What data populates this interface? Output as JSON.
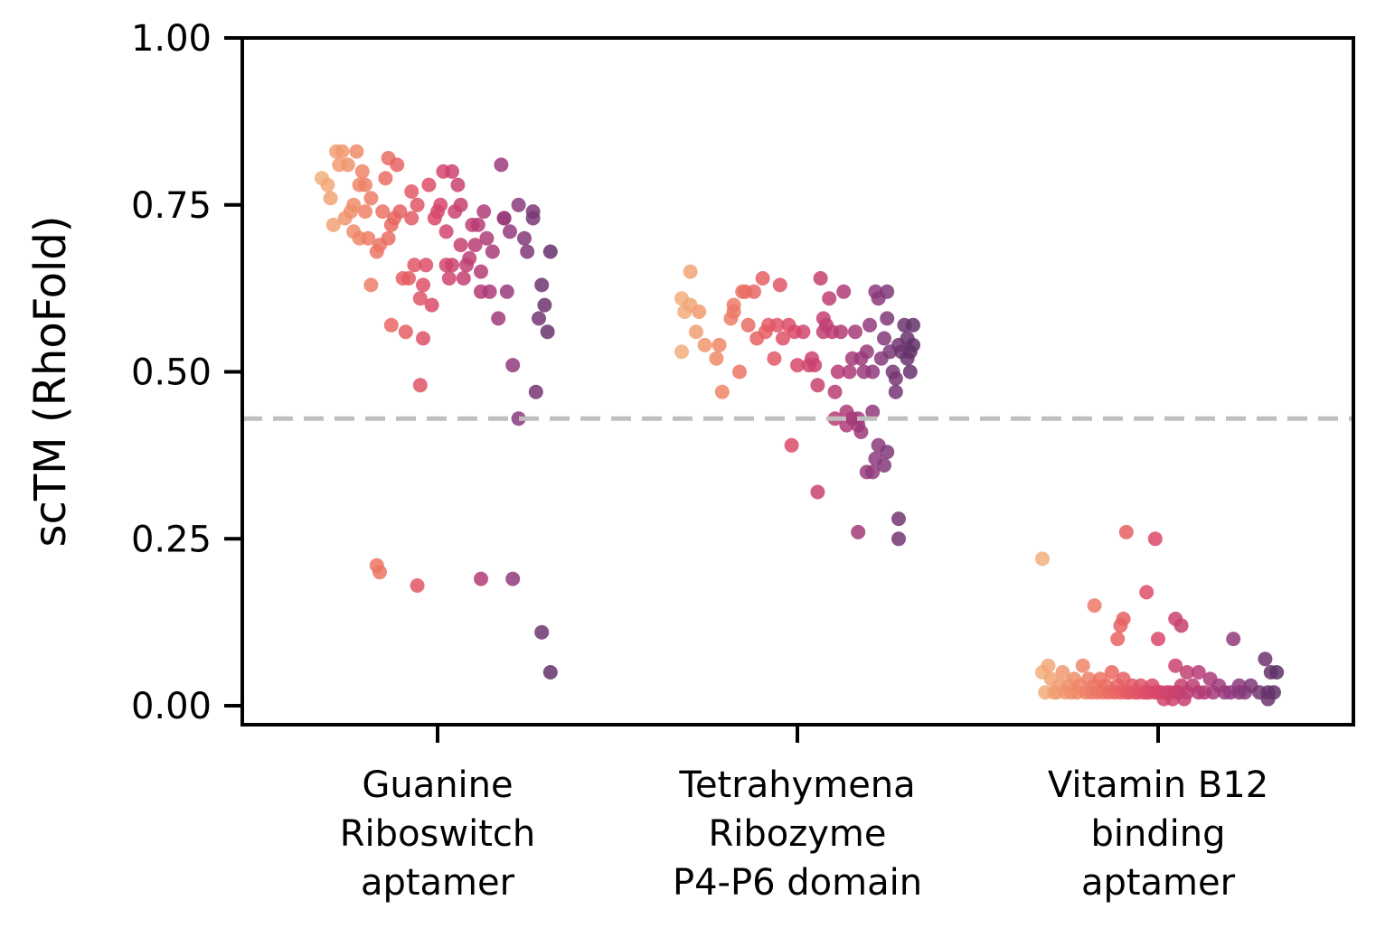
{
  "chart_data": {
    "type": "scatter",
    "title": "",
    "xlabel": "",
    "ylabel": "scTM (RhoFold)",
    "ylim": [
      -0.03,
      1.0
    ],
    "yticks": [
      "0.00",
      "0.25",
      "0.50",
      "0.75",
      "1.00"
    ],
    "grid": false,
    "legend": "none",
    "reference_line": {
      "y": 0.43,
      "style": "dashed",
      "color": "#bfbfbf"
    },
    "colormap": [
      "#f3b47f",
      "#ef8a69",
      "#e86462",
      "#d9476a",
      "#b83c76",
      "#8a3a7d",
      "#5b3166"
    ],
    "categories": [
      {
        "lines": [
          "Guanine",
          "Riboswitch",
          "aptamer"
        ]
      },
      {
        "lines": [
          "Tetrahymena",
          "Ribozyme",
          "P4-P6 domain"
        ]
      },
      {
        "lines": [
          "Vitamin B12",
          "binding",
          "aptamer"
        ]
      }
    ],
    "series": [
      {
        "category": 0,
        "points": [
          [
            -0.4,
            0.79
          ],
          [
            -0.38,
            0.78
          ],
          [
            -0.37,
            0.76
          ],
          [
            -0.36,
            0.72
          ],
          [
            -0.35,
            0.83
          ],
          [
            -0.34,
            0.81
          ],
          [
            -0.33,
            0.83
          ],
          [
            -0.32,
            0.73
          ],
          [
            -0.31,
            0.81
          ],
          [
            -0.3,
            0.74
          ],
          [
            -0.29,
            0.71
          ],
          [
            -0.29,
            0.75
          ],
          [
            -0.28,
            0.83
          ],
          [
            -0.27,
            0.7
          ],
          [
            -0.27,
            0.78
          ],
          [
            -0.26,
            0.8
          ],
          [
            -0.25,
            0.74
          ],
          [
            -0.25,
            0.78
          ],
          [
            -0.24,
            0.7
          ],
          [
            -0.23,
            0.63
          ],
          [
            -0.23,
            0.76
          ],
          [
            -0.21,
            0.68
          ],
          [
            -0.2,
            0.69
          ],
          [
            -0.19,
            0.74
          ],
          [
            -0.18,
            0.79
          ],
          [
            -0.17,
            0.7
          ],
          [
            -0.17,
            0.82
          ],
          [
            -0.16,
            0.72
          ],
          [
            -0.16,
            0.57
          ],
          [
            -0.15,
            0.73
          ],
          [
            -0.14,
            0.81
          ],
          [
            -0.13,
            0.74
          ],
          [
            -0.12,
            0.64
          ],
          [
            -0.11,
            0.56
          ],
          [
            -0.1,
            0.64
          ],
          [
            -0.09,
            0.77
          ],
          [
            -0.09,
            0.73
          ],
          [
            -0.08,
            0.66
          ],
          [
            -0.07,
            0.75
          ],
          [
            -0.06,
            0.61
          ],
          [
            -0.06,
            0.48
          ],
          [
            -0.05,
            0.63
          ],
          [
            -0.05,
            0.55
          ],
          [
            -0.04,
            0.66
          ],
          [
            -0.03,
            0.78
          ],
          [
            -0.02,
            0.6
          ],
          [
            -0.01,
            0.73
          ],
          [
            0.0,
            0.74
          ],
          [
            0.01,
            0.75
          ],
          [
            0.02,
            0.8
          ],
          [
            0.03,
            0.71
          ],
          [
            0.03,
            0.66
          ],
          [
            0.04,
            0.64
          ],
          [
            0.05,
            0.8
          ],
          [
            0.05,
            0.66
          ],
          [
            0.06,
            0.74
          ],
          [
            0.07,
            0.78
          ],
          [
            0.08,
            0.69
          ],
          [
            0.08,
            0.75
          ],
          [
            0.09,
            0.64
          ],
          [
            0.1,
            0.66
          ],
          [
            0.11,
            0.67
          ],
          [
            0.12,
            0.72
          ],
          [
            0.13,
            0.69
          ],
          [
            0.14,
            0.72
          ],
          [
            0.15,
            0.62
          ],
          [
            0.15,
            0.65
          ],
          [
            0.16,
            0.74
          ],
          [
            0.17,
            0.7
          ],
          [
            0.18,
            0.62
          ],
          [
            0.19,
            0.68
          ],
          [
            0.21,
            0.58
          ],
          [
            0.22,
            0.81
          ],
          [
            0.23,
            0.73
          ],
          [
            0.23,
            0.73
          ],
          [
            0.24,
            0.62
          ],
          [
            0.25,
            0.71
          ],
          [
            0.26,
            0.51
          ],
          [
            0.28,
            0.75
          ],
          [
            0.28,
            0.43
          ],
          [
            0.3,
            0.7
          ],
          [
            0.31,
            0.68
          ],
          [
            0.33,
            0.74
          ],
          [
            0.33,
            0.73
          ],
          [
            0.34,
            0.47
          ],
          [
            0.35,
            0.58
          ],
          [
            0.36,
            0.63
          ],
          [
            0.37,
            0.6
          ],
          [
            0.38,
            0.56
          ],
          [
            0.39,
            0.68
          ],
          [
            -0.21,
            0.21
          ],
          [
            -0.2,
            0.2
          ],
          [
            -0.07,
            0.18
          ],
          [
            0.15,
            0.19
          ],
          [
            0.26,
            0.19
          ],
          [
            0.36,
            0.11
          ],
          [
            0.39,
            0.05
          ]
        ]
      },
      {
        "category": 1,
        "points": [
          [
            -0.4,
            0.61
          ],
          [
            -0.4,
            0.53
          ],
          [
            -0.39,
            0.59
          ],
          [
            -0.37,
            0.6
          ],
          [
            -0.37,
            0.65
          ],
          [
            -0.35,
            0.56
          ],
          [
            -0.34,
            0.59
          ],
          [
            -0.32,
            0.54
          ],
          [
            -0.28,
            0.52
          ],
          [
            -0.27,
            0.54
          ],
          [
            -0.26,
            0.47
          ],
          [
            -0.23,
            0.58
          ],
          [
            -0.22,
            0.6
          ],
          [
            -0.22,
            0.59
          ],
          [
            -0.2,
            0.5
          ],
          [
            -0.19,
            0.62
          ],
          [
            -0.18,
            0.62
          ],
          [
            -0.17,
            0.57
          ],
          [
            -0.15,
            0.62
          ],
          [
            -0.14,
            0.55
          ],
          [
            -0.12,
            0.64
          ],
          [
            -0.11,
            0.56
          ],
          [
            -0.1,
            0.57
          ],
          [
            -0.08,
            0.52
          ],
          [
            -0.07,
            0.57
          ],
          [
            -0.06,
            0.63
          ],
          [
            -0.05,
            0.55
          ],
          [
            -0.03,
            0.57
          ],
          [
            -0.01,
            0.56
          ],
          [
            0.0,
            0.51
          ],
          [
            0.02,
            0.56
          ],
          [
            0.04,
            0.51
          ],
          [
            0.05,
            0.52
          ],
          [
            0.06,
            0.51
          ],
          [
            0.07,
            0.48
          ],
          [
            0.08,
            0.64
          ],
          [
            0.09,
            0.58
          ],
          [
            0.09,
            0.56
          ],
          [
            0.1,
            0.57
          ],
          [
            0.11,
            0.61
          ],
          [
            0.12,
            0.56
          ],
          [
            0.13,
            0.47
          ],
          [
            0.14,
            0.5
          ],
          [
            0.15,
            0.56
          ],
          [
            0.16,
            0.62
          ],
          [
            0.17,
            0.44
          ],
          [
            0.18,
            0.5
          ],
          [
            0.19,
            0.52
          ],
          [
            0.2,
            0.56
          ],
          [
            0.21,
            0.43
          ],
          [
            0.22,
            0.52
          ],
          [
            0.23,
            0.5
          ],
          [
            0.24,
            0.53
          ],
          [
            0.25,
            0.57
          ],
          [
            0.26,
            0.5
          ],
          [
            0.26,
            0.44
          ],
          [
            0.27,
            0.62
          ],
          [
            0.28,
            0.61
          ],
          [
            0.29,
            0.52
          ],
          [
            0.3,
            0.55
          ],
          [
            0.31,
            0.58
          ],
          [
            0.31,
            0.62
          ],
          [
            0.32,
            0.53
          ],
          [
            0.33,
            0.5
          ],
          [
            0.34,
            0.49
          ],
          [
            0.34,
            0.47
          ],
          [
            0.35,
            0.54
          ],
          [
            0.36,
            0.53
          ],
          [
            0.37,
            0.57
          ],
          [
            0.38,
            0.52
          ],
          [
            0.38,
            0.55
          ],
          [
            0.39,
            0.5
          ],
          [
            0.39,
            0.53
          ],
          [
            0.4,
            0.57
          ],
          [
            0.4,
            0.54
          ],
          [
            -0.02,
            0.39
          ],
          [
            0.07,
            0.32
          ],
          [
            0.13,
            0.43
          ],
          [
            0.17,
            0.42
          ],
          [
            0.19,
            0.43
          ],
          [
            0.21,
            0.42
          ],
          [
            0.22,
            0.41
          ],
          [
            0.24,
            0.35
          ],
          [
            0.26,
            0.35
          ],
          [
            0.27,
            0.37
          ],
          [
            0.28,
            0.39
          ],
          [
            0.3,
            0.36
          ],
          [
            0.31,
            0.38
          ],
          [
            0.35,
            0.28
          ],
          [
            0.35,
            0.25
          ],
          [
            0.21,
            0.26
          ]
        ]
      },
      {
        "category": 2,
        "points": [
          [
            -0.4,
            0.05
          ],
          [
            -0.39,
            0.02
          ],
          [
            -0.38,
            0.06
          ],
          [
            -0.37,
            0.04
          ],
          [
            -0.36,
            0.02
          ],
          [
            -0.35,
            0.02
          ],
          [
            -0.34,
            0.03
          ],
          [
            -0.33,
            0.05
          ],
          [
            -0.32,
            0.02
          ],
          [
            -0.31,
            0.03
          ],
          [
            -0.3,
            0.02
          ],
          [
            -0.29,
            0.04
          ],
          [
            -0.28,
            0.02
          ],
          [
            -0.27,
            0.03
          ],
          [
            -0.26,
            0.06
          ],
          [
            -0.25,
            0.02
          ],
          [
            -0.24,
            0.04
          ],
          [
            -0.23,
            0.02
          ],
          [
            -0.22,
            0.03
          ],
          [
            -0.21,
            0.02
          ],
          [
            -0.2,
            0.04
          ],
          [
            -0.19,
            0.02
          ],
          [
            -0.18,
            0.03
          ],
          [
            -0.17,
            0.02
          ],
          [
            -0.16,
            0.05
          ],
          [
            -0.15,
            0.02
          ],
          [
            -0.14,
            0.03
          ],
          [
            -0.13,
            0.02
          ],
          [
            -0.12,
            0.04
          ],
          [
            -0.11,
            0.02
          ],
          [
            -0.1,
            0.02
          ],
          [
            -0.09,
            0.03
          ],
          [
            -0.08,
            0.02
          ],
          [
            -0.07,
            0.02
          ],
          [
            -0.06,
            0.03
          ],
          [
            -0.05,
            0.02
          ],
          [
            -0.04,
            0.02
          ],
          [
            -0.03,
            0.02
          ],
          [
            -0.02,
            0.03
          ],
          [
            -0.01,
            0.02
          ],
          [
            0.0,
            0.02
          ],
          [
            0.01,
            0.02
          ],
          [
            0.02,
            0.01
          ],
          [
            0.03,
            0.02
          ],
          [
            0.04,
            0.02
          ],
          [
            0.05,
            0.01
          ],
          [
            0.06,
            0.02
          ],
          [
            0.07,
            0.02
          ],
          [
            0.08,
            0.03
          ],
          [
            0.09,
            0.01
          ],
          [
            0.1,
            0.02
          ],
          [
            0.12,
            0.03
          ],
          [
            0.14,
            0.02
          ],
          [
            0.16,
            0.02
          ],
          [
            0.18,
            0.04
          ],
          [
            0.19,
            0.02
          ],
          [
            0.21,
            0.03
          ],
          [
            0.23,
            0.02
          ],
          [
            0.25,
            0.02
          ],
          [
            0.28,
            0.02
          ],
          [
            0.3,
            0.02
          ],
          [
            0.32,
            0.03
          ],
          [
            0.35,
            0.02
          ],
          [
            0.38,
            0.02
          ],
          [
            0.4,
            0.02
          ],
          [
            -0.4,
            0.22
          ],
          [
            -0.22,
            0.15
          ],
          [
            -0.14,
            0.1
          ],
          [
            -0.13,
            0.12
          ],
          [
            -0.12,
            0.13
          ],
          [
            -0.11,
            0.26
          ],
          [
            -0.04,
            0.17
          ],
          [
            -0.01,
            0.25
          ],
          [
            0.0,
            0.1
          ],
          [
            0.06,
            0.13
          ],
          [
            0.08,
            0.12
          ],
          [
            0.06,
            0.06
          ],
          [
            0.1,
            0.05
          ],
          [
            0.14,
            0.05
          ],
          [
            0.26,
            0.1
          ],
          [
            0.28,
            0.03
          ],
          [
            0.37,
            0.07
          ],
          [
            0.39,
            0.05
          ],
          [
            0.41,
            0.05
          ],
          [
            0.38,
            0.01
          ]
        ]
      }
    ]
  }
}
